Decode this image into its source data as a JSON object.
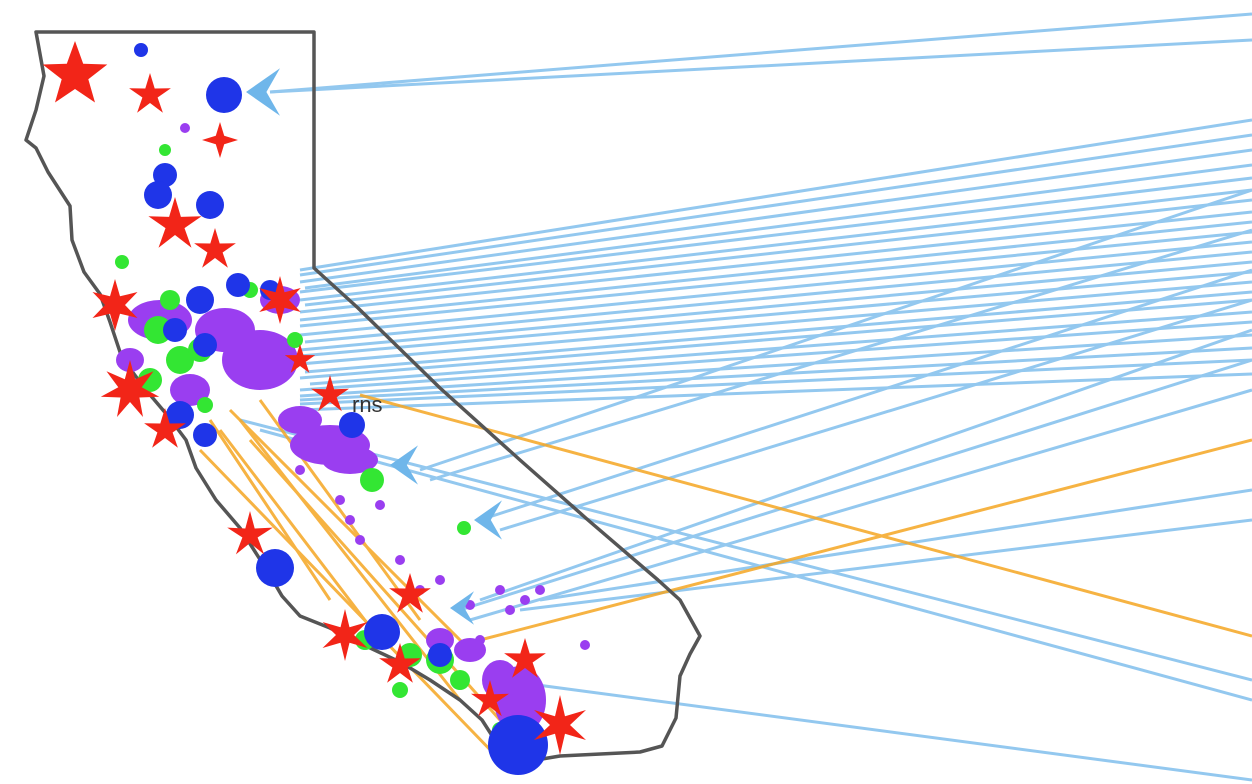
{
  "map": {
    "region": "California",
    "labels": [
      {
        "id": "label-fragment",
        "text": "rns"
      }
    ],
    "colors": {
      "outline": "#555555",
      "flow_blue": "#6fb6ea",
      "flow_orange": "#f5a623",
      "star_red": "#f22518",
      "circle_blue": "#1f35e8",
      "dot_green": "#33e633",
      "blob_purple": "#9a3ef0"
    },
    "legend": null
  }
}
